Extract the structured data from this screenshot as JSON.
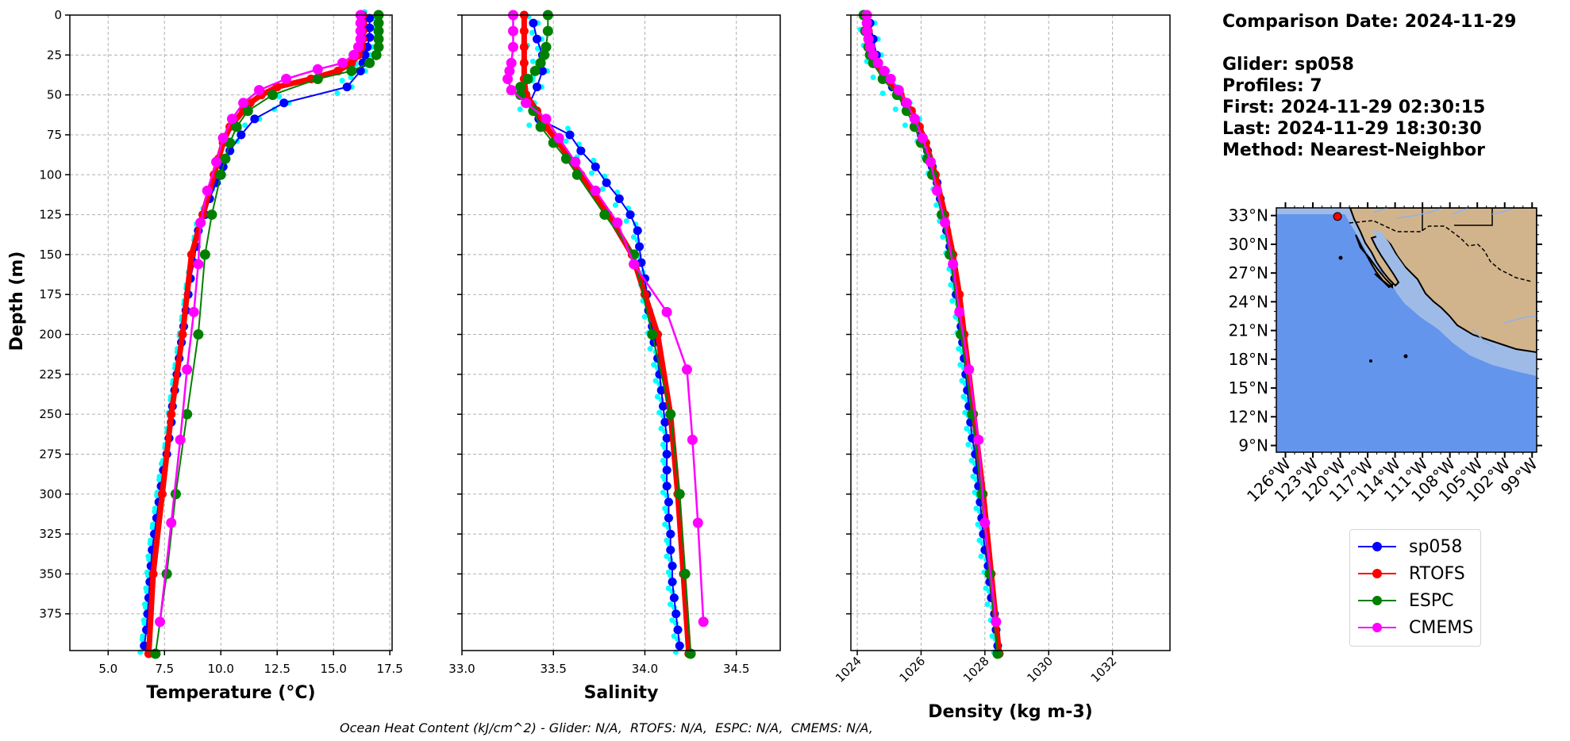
{
  "info_panel": {
    "comparison_date": "Comparison Date: 2024-11-29",
    "glider": "Glider: sp058",
    "profiles": "Profiles: 7",
    "first": "First: 2024-11-29 02:30:15",
    "last": "Last: 2024-11-29 18:30:30",
    "method": "Method: Nearest-Neighbor"
  },
  "footer": "Ocean Heat Content (kJ/cm^2) - Glider: N/A,  RTOFS: N/A,  ESPC: N/A,  CMEMS: N/A,",
  "colors": {
    "sp058": "#0000ff",
    "sp058_profiles": "#00ffff",
    "RTOFS": "#ff0000",
    "ESPC": "#008000",
    "CMEMS": "#ff00ff",
    "ocean": "#6495ed",
    "shelf": "#9ebbe8",
    "land": "#d2b48c",
    "grid": "#b0b0b0"
  },
  "legend": [
    {
      "label": "sp058",
      "color": "#0000ff"
    },
    {
      "label": "RTOFS",
      "color": "#ff0000"
    },
    {
      "label": "ESPC",
      "color": "#008000"
    },
    {
      "label": "CMEMS",
      "color": "#ff00ff"
    }
  ],
  "map": {
    "lat_ticks": [
      "33°N",
      "30°N",
      "27°N",
      "24°N",
      "21°N",
      "18°N",
      "15°N",
      "12°N",
      "9°N"
    ],
    "lon_ticks": [
      "126°W",
      "123°W",
      "120°W",
      "117°W",
      "114°W",
      "111°W",
      "108°W",
      "105°W",
      "102°W",
      "99°W"
    ],
    "lat_values": [
      33,
      30,
      27,
      24,
      21,
      18,
      15,
      12,
      9
    ],
    "lon_values": [
      -126,
      -123,
      -120,
      -117,
      -114,
      -111,
      -108,
      -105,
      -102,
      -99
    ],
    "extent": {
      "lon_min": -127,
      "lon_max": -98.5,
      "lat_min": 8.3,
      "lat_max": 33.8
    },
    "glider_position": {
      "lon": -120.3,
      "lat": 32.9
    }
  },
  "chart_data": [
    {
      "type": "line",
      "title": "",
      "xlabel": "Temperature (°C)",
      "ylabel": "Depth (m)",
      "xlim": [
        3.3,
        17.6
      ],
      "ylim": [
        398,
        0
      ],
      "xticks": [
        5.0,
        7.5,
        10.0,
        12.5,
        15.0,
        17.5
      ],
      "xtick_labels": [
        "5.0",
        "7.5",
        "10.0",
        "12.5",
        "15.0",
        "17.5"
      ],
      "yticks": [
        0,
        25,
        50,
        75,
        100,
        125,
        150,
        175,
        200,
        225,
        250,
        275,
        300,
        325,
        350,
        375
      ],
      "ytick_labels": [
        "0",
        "25",
        "50",
        "75",
        "100",
        "125",
        "150",
        "175",
        "200",
        "225",
        "250",
        "275",
        "300",
        "325",
        "350",
        "375"
      ],
      "grid": true,
      "series": [
        {
          "name": "sp058",
          "depth": [
            2,
            8,
            14,
            20,
            25,
            30,
            35,
            45,
            55,
            65,
            75,
            85,
            95,
            105,
            115,
            125,
            135,
            145,
            155,
            165,
            175,
            185,
            195,
            205,
            215,
            225,
            235,
            245,
            255,
            265,
            275,
            285,
            295,
            305,
            315,
            325,
            335,
            345,
            355,
            365,
            375,
            385,
            395
          ],
          "values": [
            16.6,
            16.6,
            16.6,
            16.5,
            16.4,
            16.3,
            16.2,
            15.6,
            12.8,
            11.5,
            10.9,
            10.4,
            10.1,
            9.8,
            9.5,
            9.3,
            9.0,
            8.9,
            8.8,
            8.65,
            8.55,
            8.45,
            8.35,
            8.25,
            8.15,
            8.05,
            7.95,
            7.85,
            7.8,
            7.7,
            7.6,
            7.45,
            7.35,
            7.25,
            7.15,
            7.05,
            6.95,
            6.9,
            6.85,
            6.8,
            6.75,
            6.7,
            6.6
          ]
        },
        {
          "name": "RTOFS",
          "depth": [
            0,
            5,
            10,
            15,
            20,
            25,
            30,
            35,
            40,
            45,
            50,
            55,
            60,
            70,
            80,
            90,
            100,
            125,
            150,
            200,
            250,
            300,
            350,
            400
          ],
          "values": [
            16.3,
            16.3,
            16.3,
            16.3,
            16.25,
            16.1,
            15.8,
            15.2,
            14.0,
            12.5,
            11.8,
            11.3,
            11.0,
            10.4,
            10.1,
            9.9,
            9.7,
            9.2,
            8.7,
            8.3,
            7.8,
            7.4,
            7.0,
            6.8
          ]
        },
        {
          "name": "ESPC",
          "depth": [
            0,
            5,
            10,
            15,
            20,
            25,
            30,
            35,
            40,
            50,
            60,
            70,
            80,
            90,
            100,
            125,
            150,
            200,
            250,
            300,
            350,
            400
          ],
          "values": [
            17.0,
            17.0,
            17.0,
            17.0,
            17.0,
            16.9,
            16.6,
            15.8,
            14.3,
            12.3,
            11.2,
            10.7,
            10.4,
            10.2,
            10.0,
            9.6,
            9.3,
            9.0,
            8.5,
            8.0,
            7.6,
            7.1
          ]
        },
        {
          "name": "CMEMS",
          "depth": [
            0,
            5,
            10,
            15,
            20,
            25,
            30,
            34,
            40,
            47,
            55,
            65,
            77,
            92,
            110,
            130,
            156,
            186,
            222,
            266,
            318,
            380
          ],
          "values": [
            16.2,
            16.2,
            16.2,
            16.2,
            16.1,
            15.9,
            15.4,
            14.3,
            12.9,
            11.7,
            11.0,
            10.5,
            10.1,
            9.8,
            9.4,
            9.1,
            9.0,
            8.8,
            8.5,
            8.2,
            7.8,
            7.3
          ]
        }
      ]
    },
    {
      "type": "line",
      "title": "",
      "xlabel": "Salinity",
      "ylabel": "",
      "xlim": [
        33.0,
        34.74
      ],
      "ylim": [
        398,
        0
      ],
      "xticks": [
        33.0,
        33.5,
        34.0,
        34.5
      ],
      "xtick_labels": [
        "33.0",
        "33.5",
        "34.0",
        "34.5"
      ],
      "grid": true,
      "series": [
        {
          "name": "sp058",
          "depth": [
            5,
            15,
            25,
            35,
            45,
            55,
            65,
            75,
            85,
            95,
            105,
            115,
            125,
            135,
            145,
            155,
            165,
            175,
            185,
            195,
            205,
            215,
            225,
            235,
            245,
            255,
            265,
            275,
            285,
            295,
            305,
            315,
            325,
            335,
            345,
            355,
            365,
            375,
            385,
            395
          ],
          "values": [
            33.39,
            33.41,
            33.44,
            33.44,
            33.41,
            33.37,
            33.42,
            33.59,
            33.65,
            33.73,
            33.79,
            33.86,
            33.92,
            33.96,
            33.97,
            33.98,
            34.0,
            34.01,
            34.02,
            34.04,
            34.05,
            34.07,
            34.08,
            34.09,
            34.1,
            34.11,
            34.12,
            34.12,
            34.12,
            34.12,
            34.13,
            34.13,
            34.14,
            34.14,
            34.15,
            34.15,
            34.16,
            34.17,
            34.18,
            34.19
          ]
        },
        {
          "name": "RTOFS",
          "depth": [
            0,
            10,
            20,
            30,
            40,
            50,
            60,
            70,
            80,
            100,
            125,
            150,
            175,
            200,
            250,
            300,
            350,
            400
          ],
          "values": [
            33.34,
            33.34,
            33.34,
            33.34,
            33.34,
            33.35,
            33.41,
            33.46,
            33.53,
            33.65,
            33.8,
            33.93,
            34.0,
            34.07,
            34.14,
            34.18,
            34.21,
            34.24
          ]
        },
        {
          "name": "ESPC",
          "depth": [
            0,
            10,
            20,
            25,
            30,
            35,
            40,
            45,
            50,
            55,
            60,
            70,
            80,
            90,
            100,
            125,
            150,
            200,
            250,
            300,
            350,
            400
          ],
          "values": [
            33.47,
            33.47,
            33.46,
            33.45,
            33.43,
            33.4,
            33.36,
            33.32,
            33.32,
            33.35,
            33.39,
            33.43,
            33.5,
            33.57,
            33.63,
            33.78,
            33.94,
            34.04,
            34.14,
            34.19,
            34.22,
            34.25
          ]
        },
        {
          "name": "CMEMS",
          "depth": [
            0,
            10,
            20,
            30,
            35,
            40,
            47,
            55,
            65,
            77,
            92,
            110,
            130,
            156,
            186,
            222,
            266,
            318,
            380
          ],
          "values": [
            33.28,
            33.28,
            33.28,
            33.27,
            33.26,
            33.25,
            33.27,
            33.35,
            33.46,
            33.53,
            33.62,
            33.73,
            33.85,
            33.94,
            34.12,
            34.23,
            34.26,
            34.29,
            34.32
          ]
        }
      ]
    },
    {
      "type": "line",
      "title": "",
      "xlabel": "Density (kg m-3)",
      "ylabel": "",
      "xlim": [
        1023.8,
        1033.8
      ],
      "ylim": [
        398,
        0
      ],
      "xticks": [
        1024,
        1026,
        1028,
        1030,
        1032
      ],
      "xtick_labels": [
        "1024",
        "1026",
        "1028",
        "1030",
        "1032"
      ],
      "grid": true,
      "series": [
        {
          "name": "sp058",
          "depth": [
            5,
            15,
            25,
            35,
            45,
            55,
            65,
            75,
            85,
            95,
            105,
            115,
            125,
            135,
            145,
            155,
            165,
            175,
            185,
            195,
            205,
            215,
            225,
            235,
            245,
            255,
            265,
            275,
            285,
            295,
            305,
            315,
            325,
            335,
            345,
            355,
            365,
            375,
            385,
            395
          ],
          "values": [
            1024.4,
            1024.5,
            1024.6,
            1024.8,
            1025.1,
            1025.5,
            1025.8,
            1026.0,
            1026.2,
            1026.35,
            1026.5,
            1026.6,
            1026.7,
            1026.8,
            1026.9,
            1027.0,
            1027.05,
            1027.1,
            1027.2,
            1027.25,
            1027.3,
            1027.35,
            1027.4,
            1027.45,
            1027.5,
            1027.55,
            1027.6,
            1027.7,
            1027.75,
            1027.8,
            1027.85,
            1027.9,
            1027.95,
            1028.0,
            1028.1,
            1028.15,
            1028.2,
            1028.3,
            1028.35,
            1028.4
          ]
        },
        {
          "name": "RTOFS",
          "depth": [
            0,
            10,
            20,
            30,
            40,
            50,
            60,
            70,
            80,
            100,
            125,
            150,
            175,
            200,
            250,
            300,
            350,
            400
          ],
          "values": [
            1024.3,
            1024.35,
            1024.4,
            1024.55,
            1024.9,
            1025.35,
            1025.7,
            1025.95,
            1026.15,
            1026.45,
            1026.75,
            1027.0,
            1027.2,
            1027.35,
            1027.65,
            1027.95,
            1028.2,
            1028.45
          ]
        },
        {
          "name": "ESPC",
          "depth": [
            0,
            10,
            20,
            25,
            30,
            40,
            50,
            60,
            70,
            80,
            90,
            100,
            125,
            150,
            200,
            250,
            300,
            350,
            400
          ],
          "values": [
            1024.2,
            1024.25,
            1024.35,
            1024.4,
            1024.5,
            1024.8,
            1025.25,
            1025.55,
            1025.8,
            1026.0,
            1026.2,
            1026.35,
            1026.65,
            1026.9,
            1027.25,
            1027.6,
            1027.9,
            1028.15,
            1028.4
          ]
        },
        {
          "name": "CMEMS",
          "depth": [
            0,
            5,
            10,
            15,
            20,
            25,
            30,
            35,
            40,
            47,
            55,
            65,
            77,
            92,
            110,
            130,
            156,
            186,
            222,
            266,
            318,
            380
          ],
          "values": [
            1024.3,
            1024.3,
            1024.3,
            1024.35,
            1024.4,
            1024.5,
            1024.65,
            1024.85,
            1025.05,
            1025.3,
            1025.55,
            1025.8,
            1026.05,
            1026.3,
            1026.5,
            1026.75,
            1027.0,
            1027.2,
            1027.5,
            1027.8,
            1028.0,
            1028.35
          ]
        }
      ]
    }
  ]
}
